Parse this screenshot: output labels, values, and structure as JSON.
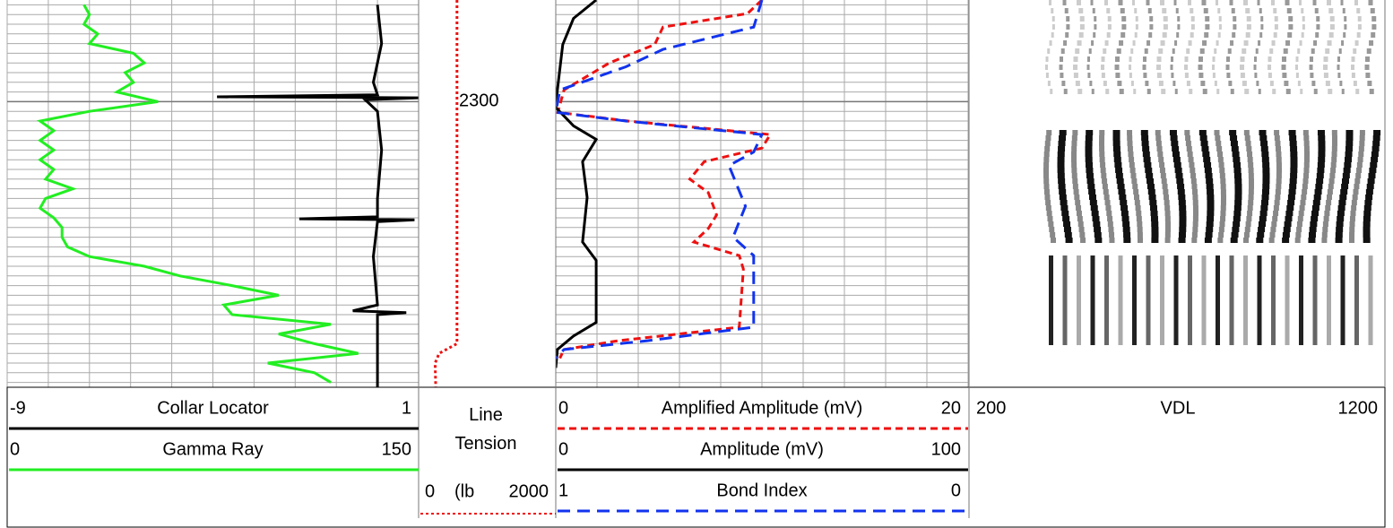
{
  "chart_data": [
    {
      "type": "line",
      "ylim": [
        2289.5,
        2329.5
      ],
      "grid": true,
      "grid_divisions": 10,
      "grid_step": 1,
      "series": [
        {
          "name": "Collar Locator",
          "color": "#000000",
          "style": "solid",
          "xlim": [
            -9,
            1
          ],
          "depths": [
            2290,
            2294,
            2298,
            2299.3,
            2299.5,
            2299.6,
            2299.8,
            2301,
            2305,
            2310,
            2311.9,
            2312.1,
            2312.2,
            2312.4,
            2316,
            2321,
            2321.6,
            2321.8,
            2322,
            2326,
            2329.5
          ],
          "values": [
            0,
            0.1,
            -0.1,
            0,
            -3.9,
            1,
            -0.3,
            0,
            0.1,
            0,
            0,
            -1.9,
            0.9,
            0,
            -0.1,
            0,
            -0.6,
            0.7,
            0,
            0,
            0
          ]
        },
        {
          "name": "Gamma Ray",
          "color": "#22ee22",
          "style": "solid",
          "xlim": [
            0,
            150
          ],
          "depths": [
            2290,
            2291,
            2292,
            2293,
            2294,
            2295,
            2296,
            2297,
            2298,
            2299,
            2300,
            2301,
            2302,
            2303,
            2304,
            2305,
            2306,
            2307,
            2308,
            2309,
            2310,
            2311,
            2312,
            2313,
            2314,
            2315,
            2316,
            2317,
            2318,
            2319,
            2320,
            2321,
            2322,
            2323,
            2324,
            2325,
            2326,
            2327,
            2328,
            2329
          ],
          "values": [
            28,
            30,
            28,
            33,
            30,
            46,
            50,
            43,
            46,
            40,
            55,
            30,
            12,
            17,
            12,
            17,
            12,
            17,
            14,
            24,
            14,
            12,
            17,
            20,
            20,
            22,
            30,
            50,
            63,
            82,
            99,
            79,
            82,
            118,
            99,
            112,
            128,
            95,
            112,
            118
          ]
        }
      ]
    },
    {
      "type": "line",
      "ylim": [
        2289.5,
        2329.5
      ],
      "yticks": [
        2300
      ],
      "series": [
        {
          "name": "Line Tension",
          "unit": "(lb",
          "color": "#ee1111",
          "style": "dotted",
          "xlim": [
            0,
            2000
          ],
          "depths": [
            2289.5,
            2325,
            2326,
            2327,
            2329.5
          ],
          "values": [
            560,
            560,
            300,
            240,
            250
          ]
        }
      ]
    },
    {
      "type": "line",
      "ylim": [
        2289.5,
        2329.5
      ],
      "grid": true,
      "grid_divisions": 10,
      "grid_step": 1,
      "series": [
        {
          "name": "Amplified Amplitude (mV)",
          "color": "#ee1111",
          "style": "dashed",
          "xlim": [
            0,
            20
          ],
          "depths": [
            2289.5,
            2290.9,
            2292.3,
            2294.1,
            2296,
            2298.8,
            2301.1,
            2302,
            2303.4,
            2304.8,
            2306.2,
            2308,
            2309.4,
            2311.7,
            2313.1,
            2314.5,
            2315.9,
            2317.3,
            2323.3,
            2324.7,
            2325.6,
            2326.5
          ],
          "values": [
            10,
            9.3,
            5.2,
            4.8,
            2.6,
            0.4,
            0.1,
            3.5,
            10.4,
            10,
            7.2,
            6.5,
            7.4,
            7.8,
            7.4,
            6.7,
            8.9,
            9.1,
            8.9,
            3,
            0.4,
            0.2
          ]
        },
        {
          "name": "Amplitude (mV)",
          "color": "#000000",
          "style": "solid",
          "xlim": [
            0,
            100
          ],
          "depths": [
            2289.5,
            2291.4,
            2294.1,
            2298.8,
            2300.6,
            2302.5,
            2303.9,
            2306.2,
            2309.9,
            2314.5,
            2316.4,
            2322.8,
            2324.2,
            2325.6,
            2327.5
          ],
          "values": [
            9.8,
            4.3,
            1.7,
            0.4,
            0,
            4.3,
            9.8,
            6.5,
            7.6,
            6.5,
            9.8,
            9.8,
            4.3,
            0.4,
            0
          ]
        },
        {
          "name": "Bond Index",
          "color": "#1133ee",
          "style": "long-dashed",
          "xlim": [
            1,
            0
          ],
          "depths": [
            2289.5,
            2292.3,
            2294.6,
            2296.4,
            2298.8,
            2301.1,
            2302,
            2303.4,
            2305.2,
            2306.6,
            2310.8,
            2314,
            2315.9,
            2323.3,
            2324.7,
            2325.6,
            2326.5
          ],
          "values": [
            0.5,
            0.52,
            0.74,
            0.83,
            0.99,
            1,
            0.83,
            0.5,
            0.52,
            0.58,
            0.54,
            0.57,
            0.52,
            0.52,
            0.78,
            0.98,
            1
          ]
        }
      ]
    },
    {
      "type": "vdl",
      "title": "VDL",
      "xlim": [
        200,
        1200
      ]
    }
  ]
}
